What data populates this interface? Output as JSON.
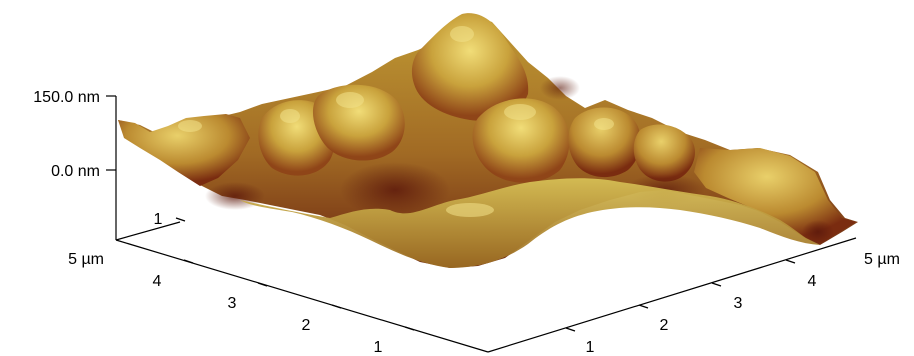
{
  "figure": {
    "z_axis": {
      "top_label": "150.0 nm",
      "zero_label": "0.0 nm"
    },
    "left_axis": {
      "tick_labels": [
        "1",
        "2",
        "3",
        "4",
        "5 µm"
      ]
    },
    "right_axis": {
      "tick_labels": [
        "1",
        "2",
        "3",
        "4",
        "5 µm"
      ]
    },
    "colors": {
      "highlight": "#e8d26a",
      "mid": "#c8a038",
      "shadow": "#8a3a14",
      "deep": "#5e1a0c"
    }
  }
}
